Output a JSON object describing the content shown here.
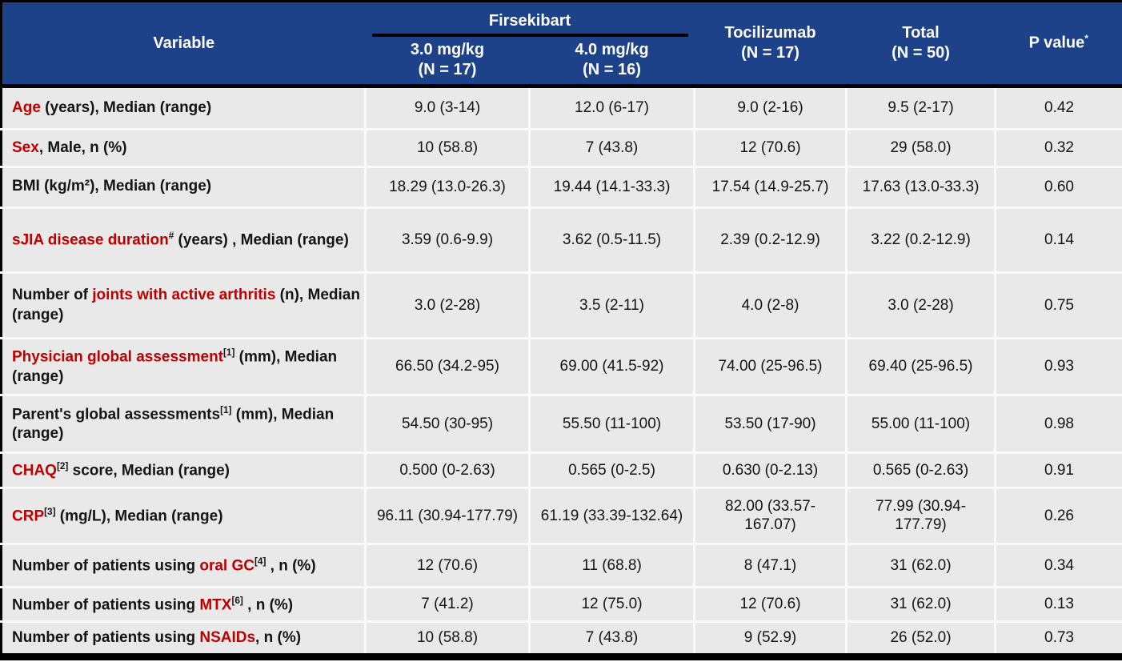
{
  "colors": {
    "header_bg": "#1e4289",
    "header_text": "#ffffff",
    "accent_red": "#c00000",
    "row_bg": "#e9e9e9",
    "body_text": "#141414",
    "divider": "#fafafa",
    "border_black": "#000000"
  },
  "table": {
    "header": {
      "variable_label": "Variable",
      "group_label": "Firsekibart",
      "columns": [
        {
          "label": "3.0 mg/kg",
          "sub": "(N = 17)"
        },
        {
          "label": "4.0 mg/kg",
          "sub": "(N = 16)"
        },
        {
          "label": "Tocilizumab",
          "sub": "(N = 17)"
        },
        {
          "label": "Total",
          "sub": "(N = 50)"
        },
        {
          "label": "P value",
          "sup": "*"
        }
      ]
    },
    "rows": [
      {
        "label_parts": [
          {
            "t": "Age",
            "c": "red"
          },
          {
            "t": " (years), Median (range)",
            "c": "black"
          }
        ],
        "values": [
          "9.0 (3-14)",
          "12.0 (6-17)",
          "9.0 (2-16)",
          "9.5 (2-17)",
          "0.42"
        ]
      },
      {
        "label_parts": [
          {
            "t": "Sex",
            "c": "red"
          },
          {
            "t": ", Male, n (%)",
            "c": "black"
          }
        ],
        "values": [
          "10 (58.8)",
          "7 (43.8)",
          "12 (70.6)",
          "29 (58.0)",
          "0.32"
        ]
      },
      {
        "label_parts": [
          {
            "t": "BMI (kg/m²), Median (range)",
            "c": "black"
          }
        ],
        "values": [
          "18.29 (13.0-26.3)",
          "19.44 (14.1-33.3)",
          "17.54 (14.9-25.7)",
          "17.63 (13.0-33.3)",
          "0.60"
        ]
      },
      {
        "label_parts": [
          {
            "t": "sJIA disease duration",
            "c": "red"
          },
          {
            "t": "#",
            "c": "black",
            "sup": true
          },
          {
            "t": " (years) , Median (range)",
            "c": "black"
          }
        ],
        "values": [
          "3.59 (0.6-9.9)",
          "3.62 (0.5-11.5)",
          "2.39 (0.2-12.9)",
          "3.22 (0.2-12.9)",
          "0.14"
        ]
      },
      {
        "label_parts": [
          {
            "t": "Number of ",
            "c": "black"
          },
          {
            "t": "joints with active arthritis",
            "c": "red"
          },
          {
            "t": " (n), Median (range)",
            "c": "black"
          }
        ],
        "values": [
          "3.0 (2-28)",
          "3.5 (2-11)",
          "4.0 (2-8)",
          "3.0 (2-28)",
          "0.75"
        ]
      },
      {
        "label_parts": [
          {
            "t": "Physician global assessment",
            "c": "red"
          },
          {
            "t": "[1]",
            "c": "black",
            "sup": true
          },
          {
            "t": " (mm), Median (range)",
            "c": "black"
          }
        ],
        "values": [
          "66.50 (34.2-95)",
          "69.00 (41.5-92)",
          "74.00 (25-96.5)",
          "69.40 (25-96.5)",
          "0.93"
        ]
      },
      {
        "label_parts": [
          {
            "t": "Parent's global assessments",
            "c": "black"
          },
          {
            "t": "[1]",
            "c": "black",
            "sup": true
          },
          {
            "t": " (mm), Median (range)",
            "c": "black"
          }
        ],
        "values": [
          "54.50 (30-95)",
          "55.50 (11-100)",
          "53.50 (17-90)",
          "55.00 (11-100)",
          "0.98"
        ]
      },
      {
        "label_parts": [
          {
            "t": "CHAQ",
            "c": "red"
          },
          {
            "t": "[2]",
            "c": "black",
            "sup": true
          },
          {
            "t": " score, Median (range)",
            "c": "black"
          }
        ],
        "values": [
          "0.500 (0-2.63)",
          "0.565 (0-2.5)",
          "0.630 (0-2.13)",
          "0.565 (0-2.63)",
          "0.91"
        ]
      },
      {
        "label_parts": [
          {
            "t": "CRP",
            "c": "red"
          },
          {
            "t": "[3]",
            "c": "black",
            "sup": true
          },
          {
            "t": " (mg/L), Median (range)",
            "c": "black"
          }
        ],
        "values": [
          "96.11 (30.94-177.79)",
          "61.19 (33.39-132.64)",
          "82.00 (33.57-167.07)",
          "77.99 (30.94-177.79)",
          "0.26"
        ]
      },
      {
        "label_parts": [
          {
            "t": "Number of patients using ",
            "c": "black"
          },
          {
            "t": "oral GC",
            "c": "red"
          },
          {
            "t": "[4]",
            "c": "black",
            "sup": true
          },
          {
            "t": " , n (%)",
            "c": "black"
          }
        ],
        "values": [
          "12 (70.6)",
          "11 (68.8)",
          "8 (47.1)",
          "31 (62.0)",
          "0.34"
        ]
      },
      {
        "label_parts": [
          {
            "t": "Number of patients using ",
            "c": "black"
          },
          {
            "t": "MTX",
            "c": "red"
          },
          {
            "t": "[6]",
            "c": "black",
            "sup": true
          },
          {
            "t": " , n (%)",
            "c": "black"
          }
        ],
        "values": [
          "7 (41.2)",
          "12 (75.0)",
          "12 (70.6)",
          "31 (62.0)",
          "0.13"
        ]
      },
      {
        "label_parts": [
          {
            "t": "Number of patients using ",
            "c": "black"
          },
          {
            "t": "NSAIDs",
            "c": "red"
          },
          {
            "t": ", n (%)",
            "c": "black"
          }
        ],
        "values": [
          "10 (58.8)",
          "7 (43.8)",
          "9 (52.9)",
          "26 (52.0)",
          "0.73"
        ]
      }
    ]
  }
}
